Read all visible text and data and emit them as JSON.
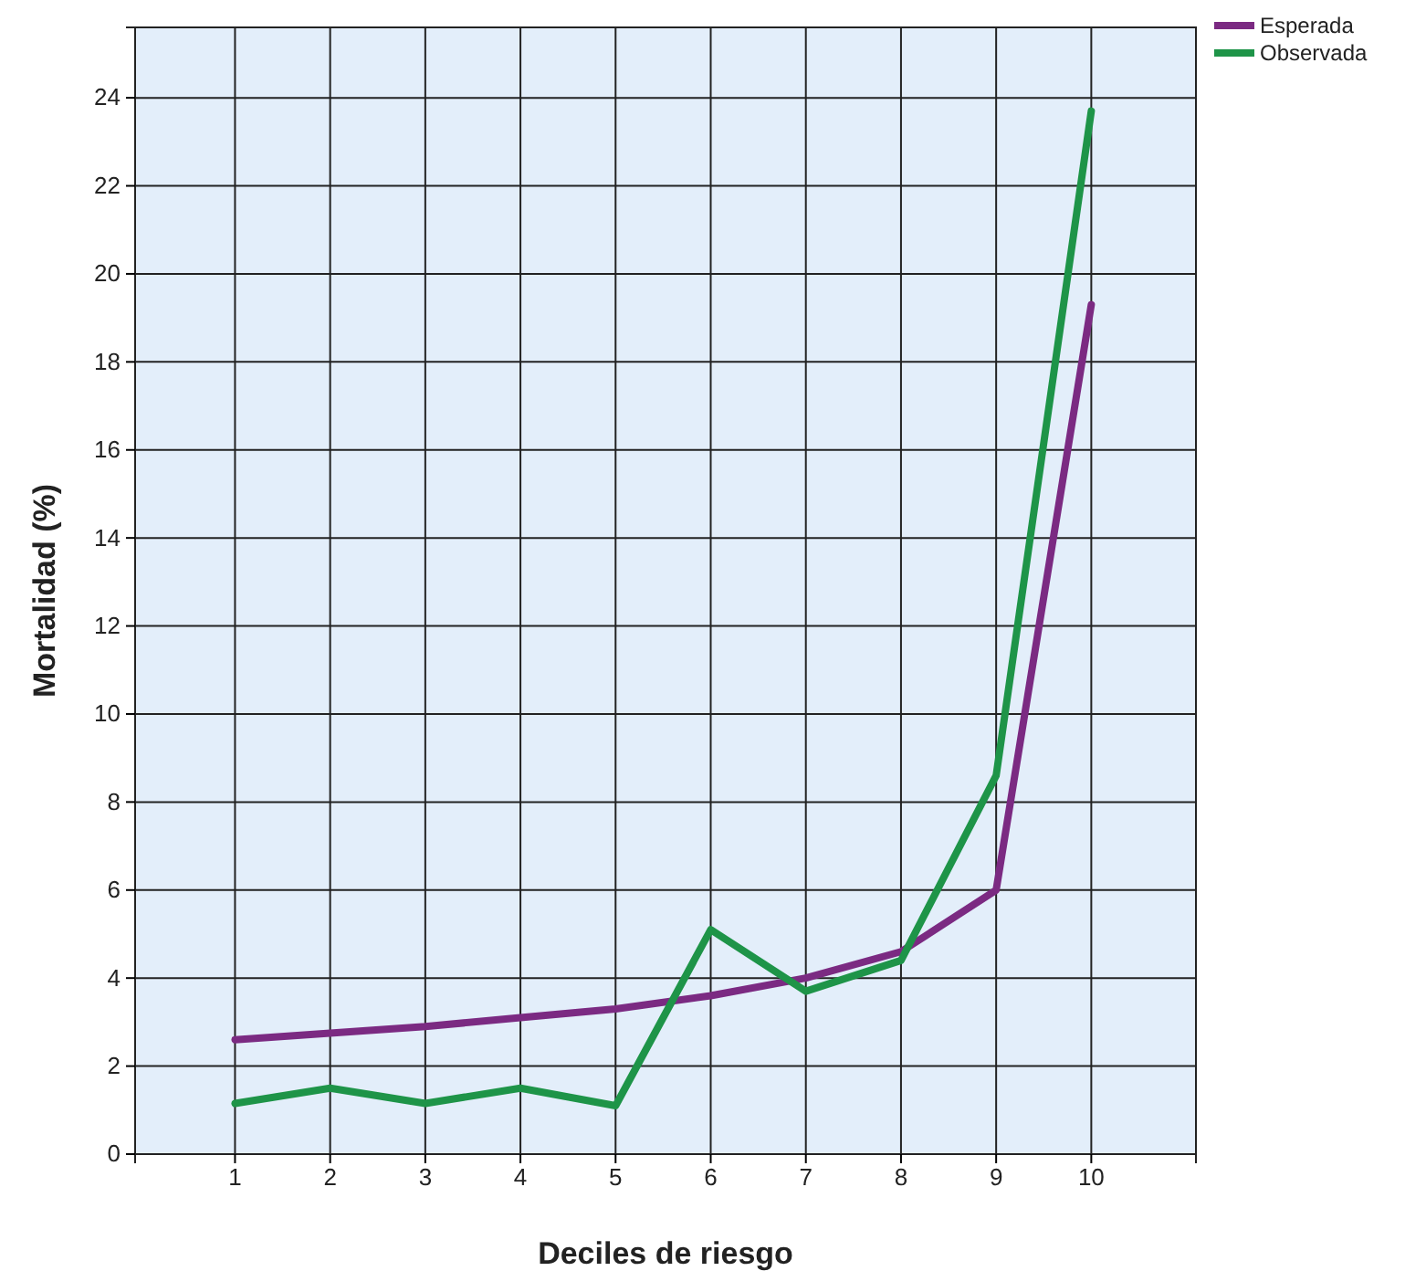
{
  "chart_data": {
    "type": "line",
    "xlabel": "Deciles de riesgo",
    "ylabel": "Mortalidad (%)",
    "x": [
      1,
      2,
      3,
      4,
      5,
      6,
      7,
      8,
      9,
      10
    ],
    "xlim": [
      -0.05,
      11.1
    ],
    "xticks": [
      1,
      2,
      3,
      4,
      5,
      6,
      7,
      8,
      9,
      10
    ],
    "ylim": [
      0,
      25.6
    ],
    "yticks": [
      0,
      2,
      4,
      6,
      8,
      10,
      12,
      14,
      16,
      18,
      20,
      22,
      24
    ],
    "grid": true,
    "legend": "top right",
    "marker": "none",
    "line_style": "solid",
    "series": [
      {
        "name": "Esperada",
        "color": "#7b2a82",
        "values": [
          2.6,
          2.75,
          2.9,
          3.1,
          3.3,
          3.6,
          4.0,
          4.6,
          6.0,
          19.3
        ]
      },
      {
        "name": "Observada",
        "color": "#1e9448",
        "values": [
          1.15,
          1.5,
          1.15,
          1.5,
          1.1,
          5.1,
          3.7,
          4.4,
          8.6,
          23.7
        ]
      }
    ]
  }
}
